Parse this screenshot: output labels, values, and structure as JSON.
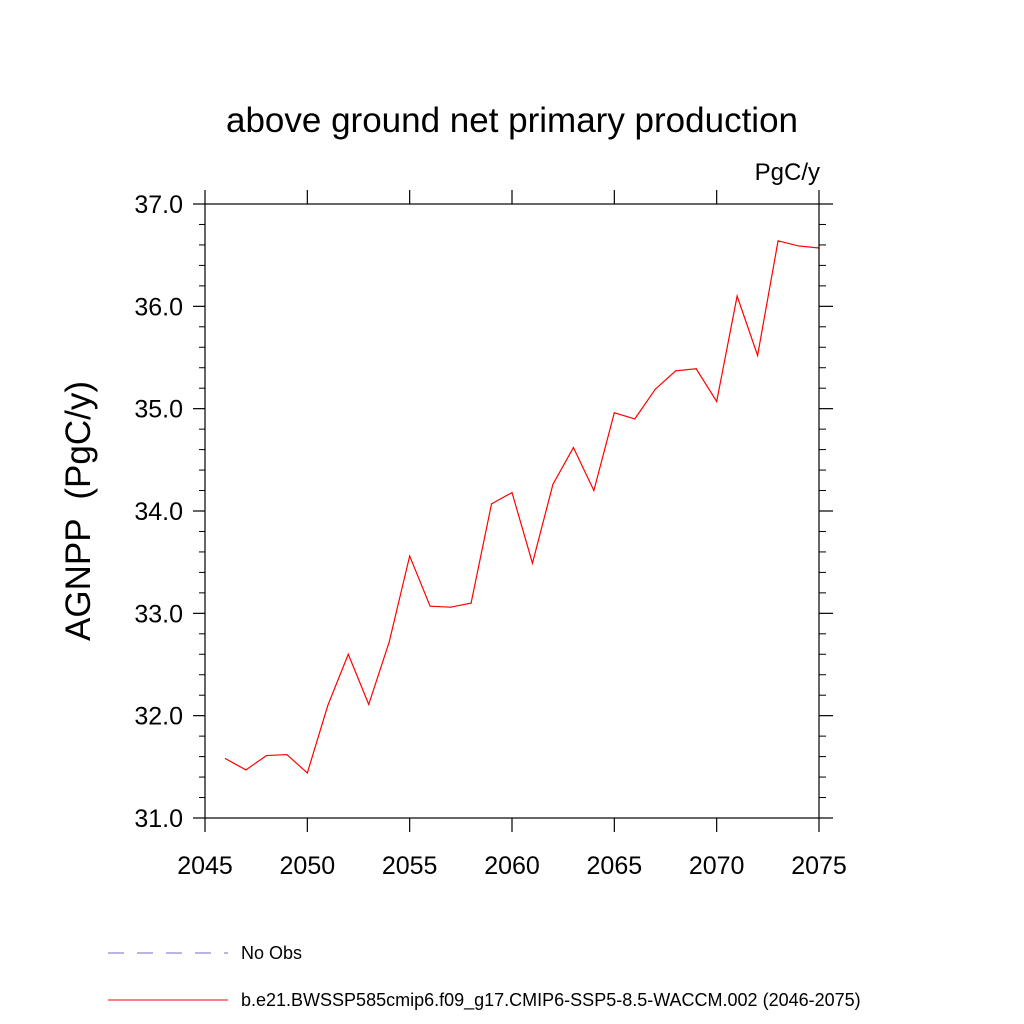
{
  "chart_data": {
    "type": "line",
    "title": "above ground net primary production",
    "units_label": "PgC/y",
    "ylabel": "AGNPP  (PgC/y)",
    "xlabel": "",
    "xlim": [
      2045,
      2075
    ],
    "ylim": [
      31.0,
      37.0
    ],
    "x_ticks": [
      2045,
      2050,
      2055,
      2060,
      2065,
      2070,
      2075
    ],
    "x_tick_labels": [
      "2045",
      "2050",
      "2055",
      "2060",
      "2065",
      "2070",
      "2075"
    ],
    "y_ticks": [
      31.0,
      32.0,
      33.0,
      34.0,
      35.0,
      36.0,
      37.0
    ],
    "y_tick_labels": [
      "31.0",
      "32.0",
      "33.0",
      "34.0",
      "35.0",
      "36.0",
      "37.0"
    ],
    "grid": false,
    "legend_position": "bottom",
    "series": [
      {
        "name": "b.e21.BWSSP585cmip6.f09_g17.CMIP6-SSP5-8.5-WACCM.002 (2046-2075)",
        "color": "#ff0000",
        "dash": "solid",
        "x": [
          2046,
          2047,
          2048,
          2049,
          2050,
          2051,
          2052,
          2053,
          2054,
          2055,
          2056,
          2057,
          2058,
          2059,
          2060,
          2061,
          2062,
          2063,
          2064,
          2065,
          2066,
          2067,
          2068,
          2069,
          2070,
          2071,
          2072,
          2073,
          2074,
          2075
        ],
        "values": [
          31.58,
          31.47,
          31.61,
          31.62,
          31.44,
          32.1,
          32.6,
          32.11,
          32.72,
          33.56,
          33.07,
          33.06,
          33.1,
          34.07,
          34.18,
          33.49,
          34.26,
          34.62,
          34.2,
          34.96,
          34.9,
          35.19,
          35.37,
          35.39,
          35.07,
          36.1,
          35.52,
          36.64,
          36.59,
          36.57
        ]
      }
    ],
    "legend": [
      {
        "label": "No Obs",
        "color": "#7b68c8",
        "dash": "dashed"
      },
      {
        "label": "b.e21.BWSSP585cmip6.f09_g17.CMIP6-SSP5-8.5-WACCM.002 (2046-2075)",
        "color": "#ff0000",
        "dash": "solid"
      }
    ]
  }
}
